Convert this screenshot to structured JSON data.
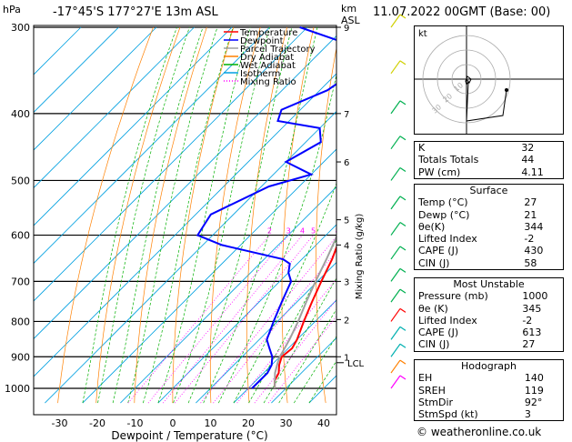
{
  "header": {
    "hpa_label": "hPa",
    "location": "-17°45'S  177°27'E  13m  ASL",
    "km_label": "km",
    "asl_label": "ASL",
    "datetime": "11.07.2022  00GMT  (Base: 00)"
  },
  "chart_data": {
    "type": "skew-t",
    "xlabel": "Dewpoint / Temperature (°C)",
    "ylabel_right": "Mixing Ratio (g/kg)",
    "xlim": [
      -35,
      45
    ],
    "ylim": [
      1050,
      300
    ],
    "pressure_ticks": [
      300,
      400,
      500,
      600,
      700,
      800,
      900,
      1000
    ],
    "temp_ticks": [
      -30,
      -20,
      -10,
      0,
      10,
      20,
      30,
      40
    ],
    "km_ticks": [
      {
        "p": 300,
        "label": "9"
      },
      {
        "p": 400,
        "label": "7"
      },
      {
        "p": 470,
        "label": "6"
      },
      {
        "p": 570,
        "label": "5"
      },
      {
        "p": 620,
        "label": "4"
      },
      {
        "p": 700,
        "label": "3"
      },
      {
        "p": 795,
        "label": "2"
      },
      {
        "p": 900,
        "label": "1"
      }
    ],
    "lcl": {
      "p": 918,
      "label": "LCL"
    },
    "mixing_ratio_labels": [
      "2",
      "3",
      "4",
      "5",
      "8",
      "10",
      "15",
      "20",
      "25"
    ],
    "mixing_ratio_values": [
      2,
      3,
      4,
      5,
      8,
      10,
      15,
      20,
      25
    ],
    "legend": [
      {
        "name": "Temperature",
        "color": "#ff0000",
        "dash": "solid"
      },
      {
        "name": "Dewpoint",
        "color": "#0000ff",
        "dash": "solid"
      },
      {
        "name": "Parcel Trajectory",
        "color": "#a0a0a0",
        "dash": "solid"
      },
      {
        "name": "Dry Adiabat",
        "color": "#ff8000",
        "dash": "solid"
      },
      {
        "name": "Wet Adiabat",
        "color": "#00b000",
        "dash": "solid"
      },
      {
        "name": "Isotherm",
        "color": "#00a0e0",
        "dash": "solid"
      },
      {
        "name": "Mixing Ratio",
        "color": "#ff00ff",
        "dash": "dotted"
      }
    ],
    "series": [
      {
        "name": "Temperature",
        "color": "#ff0000",
        "points": [
          [
            1000,
            27
          ],
          [
            975,
            25
          ],
          [
            950,
            24
          ],
          [
            925,
            22
          ],
          [
            900,
            20.5
          ],
          [
            875,
            21
          ],
          [
            850,
            20
          ],
          [
            800,
            17
          ],
          [
            750,
            14
          ],
          [
            700,
            11
          ],
          [
            650,
            8
          ],
          [
            600,
            4
          ],
          [
            550,
            0
          ],
          [
            500,
            -5
          ],
          [
            450,
            -11
          ],
          [
            400,
            -18
          ],
          [
            350,
            -27
          ],
          [
            300,
            -37
          ]
        ]
      },
      {
        "name": "Dewpoint",
        "color": "#0000ff",
        "points": [
          [
            1000,
            21
          ],
          [
            950,
            21
          ],
          [
            925,
            20
          ],
          [
            900,
            18
          ],
          [
            875,
            15
          ],
          [
            850,
            12
          ],
          [
            800,
            9
          ],
          [
            750,
            6
          ],
          [
            700,
            3
          ],
          [
            680,
            0
          ],
          [
            660,
            -2
          ],
          [
            650,
            -5
          ],
          [
            620,
            -25
          ],
          [
            600,
            -34
          ],
          [
            560,
            -36
          ],
          [
            510,
            -28
          ],
          [
            490,
            -20
          ],
          [
            470,
            -30
          ],
          [
            440,
            -26
          ],
          [
            420,
            -30
          ],
          [
            410,
            -43
          ],
          [
            395,
            -45
          ],
          [
            370,
            -38
          ],
          [
            350,
            -36
          ],
          [
            320,
            -42
          ],
          [
            300,
            -62
          ]
        ]
      },
      {
        "name": "Parcel Trajectory",
        "color": "#a0a0a0",
        "points": [
          [
            1000,
            27
          ],
          [
            950,
            23
          ],
          [
            918,
            21
          ],
          [
            900,
            20
          ],
          [
            850,
            18
          ],
          [
            800,
            15.5
          ],
          [
            750,
            12.5
          ],
          [
            700,
            9.5
          ],
          [
            650,
            6.5
          ],
          [
            600,
            3
          ],
          [
            550,
            -1
          ],
          [
            500,
            -5.5
          ],
          [
            450,
            -10.5
          ],
          [
            400,
            -16.5
          ],
          [
            350,
            -24
          ],
          [
            300,
            -33
          ]
        ]
      }
    ]
  },
  "hodograph": {
    "label": "kt",
    "rings": [
      "10",
      "20",
      "30"
    ]
  },
  "indices": [
    {
      "label": "K",
      "value": "32"
    },
    {
      "label": "Totals Totals",
      "value": "44"
    },
    {
      "label": "PW (cm)",
      "value": "4.11"
    }
  ],
  "surface": {
    "title": "Surface",
    "rows": [
      {
        "label": "Temp (°C)",
        "value": "27"
      },
      {
        "label": "Dewp (°C)",
        "value": "21"
      },
      {
        "label": "θe(K)",
        "value": "344"
      },
      {
        "label": "Lifted Index",
        "value": "-2"
      },
      {
        "label": "CAPE (J)",
        "value": "430"
      },
      {
        "label": "CIN (J)",
        "value": "58"
      }
    ]
  },
  "most_unstable": {
    "title": "Most Unstable",
    "rows": [
      {
        "label": "Pressure (mb)",
        "value": "1000"
      },
      {
        "label": "θe (K)",
        "value": "345"
      },
      {
        "label": "Lifted Index",
        "value": "-2"
      },
      {
        "label": "CAPE (J)",
        "value": "613"
      },
      {
        "label": "CIN (J)",
        "value": "27"
      }
    ]
  },
  "hodograph_table": {
    "title": "Hodograph",
    "rows": [
      {
        "label": "EH",
        "value": "140"
      },
      {
        "label": "SREH",
        "value": "119"
      },
      {
        "label": "StmDir",
        "value": "92°"
      },
      {
        "label": "StmSpd (kt)",
        "value": "3"
      }
    ]
  },
  "credit": "© weatheronline.co.uk"
}
